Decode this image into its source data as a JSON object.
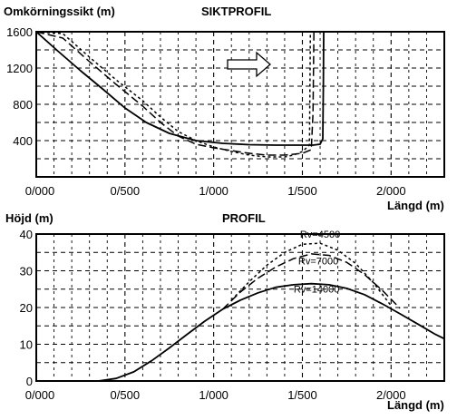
{
  "charts": [
    {
      "id": "top",
      "type": "line",
      "title": "SIKTPROFIL",
      "ylabel": "Omkörningssikt (m)",
      "xlabel": "Längd (m)",
      "xlim": [
        0,
        2300
      ],
      "ylim": [
        0,
        1600
      ],
      "yticks": [
        {
          "value": 0,
          "label": ""
        },
        {
          "value": 400,
          "label": "400"
        },
        {
          "value": 800,
          "label": "800"
        },
        {
          "value": 1200,
          "label": "1200"
        },
        {
          "value": 1600,
          "label": "1600"
        }
      ],
      "xticks": [
        {
          "value": 0,
          "label": "0/000"
        },
        {
          "value": 500,
          "label": "0/500"
        },
        {
          "value": 1000,
          "label": "1/000"
        },
        {
          "value": 1500,
          "label": "1/500"
        },
        {
          "value": 2000,
          "label": "2/000"
        }
      ],
      "grid": true,
      "annotations": [
        {
          "kind": "arrow",
          "direction": "right"
        }
      ],
      "series": [
        {
          "style": "solid",
          "x": [
            0,
            120,
            250,
            380,
            500,
            620,
            750,
            900,
            1050,
            1200,
            1350,
            1500,
            1560,
            1600,
            1615,
            1618,
            1620
          ],
          "y": [
            1600,
            1390,
            1170,
            960,
            760,
            600,
            480,
            400,
            370,
            355,
            350,
            350,
            350,
            360,
            420,
            1000,
            1600
          ]
        },
        {
          "style": "dashed",
          "x": [
            0,
            150,
            300,
            450,
            600,
            700,
            800,
            900,
            1000,
            1100,
            1200,
            1300,
            1400,
            1500,
            1550,
            1560,
            1565
          ],
          "y": [
            1780,
            1530,
            1270,
            1020,
            780,
            600,
            450,
            360,
            320,
            290,
            260,
            240,
            240,
            260,
            300,
            700,
            1600
          ]
        },
        {
          "style": "dotted",
          "x": [
            0,
            150,
            300,
            450,
            600,
            700,
            800,
            900,
            1000,
            1100,
            1200,
            1300,
            1400,
            1450,
            1500,
            1540,
            1545
          ],
          "y": [
            1820,
            1580,
            1320,
            1070,
            840,
            660,
            500,
            400,
            330,
            280,
            240,
            220,
            220,
            240,
            280,
            350,
            1600
          ]
        }
      ]
    },
    {
      "id": "bottom",
      "type": "line",
      "title": "PROFIL",
      "ylabel": "Höjd (m)",
      "xlabel": "Längd (m)",
      "xlim": [
        0,
        2300
      ],
      "ylim": [
        0,
        40
      ],
      "yticks": [
        {
          "value": 0,
          "label": "0"
        },
        {
          "value": 10,
          "label": "10"
        },
        {
          "value": 20,
          "label": "20"
        },
        {
          "value": 30,
          "label": "30"
        },
        {
          "value": 40,
          "label": "40"
        }
      ],
      "xticks": [
        {
          "value": 0,
          "label": "0/000"
        },
        {
          "value": 500,
          "label": "0/500"
        },
        {
          "value": 1000,
          "label": "1/000"
        },
        {
          "value": 1500,
          "label": "1/500"
        },
        {
          "value": 2000,
          "label": "2/000"
        }
      ],
      "grid": true,
      "series": [
        {
          "style": "solid",
          "label": "Rv=14000",
          "x": [
            0,
            350,
            450,
            550,
            650,
            750,
            850,
            950,
            1050,
            1150,
            1250,
            1350,
            1450,
            1550,
            1650,
            1750,
            1850,
            1950,
            2050,
            2150,
            2250,
            2300
          ],
          "y": [
            0,
            0,
            0.7,
            2.5,
            5.5,
            9,
            12.7,
            16.3,
            19.5,
            22,
            24,
            25.5,
            26.2,
            26.5,
            26.2,
            25.2,
            23.5,
            21,
            18.3,
            15.5,
            12.7,
            11.5
          ]
        },
        {
          "style": "dashed",
          "label": "Rv=7000",
          "x": [
            1050,
            1150,
            1250,
            1350,
            1450,
            1550,
            1650,
            1750,
            1850,
            1950,
            2050
          ],
          "y": [
            19.5,
            24.2,
            28,
            31,
            33.3,
            34.6,
            34.2,
            32.3,
            29,
            24.7,
            19.8
          ]
        },
        {
          "style": "dotted",
          "label": "Rv=4500",
          "x": [
            1100,
            1200,
            1300,
            1400,
            1500,
            1600,
            1700,
            1800,
            1900,
            2000
          ],
          "y": [
            22,
            27,
            31.5,
            35,
            37.2,
            37.5,
            35.6,
            32,
            26.8,
            20.5
          ]
        }
      ]
    }
  ]
}
